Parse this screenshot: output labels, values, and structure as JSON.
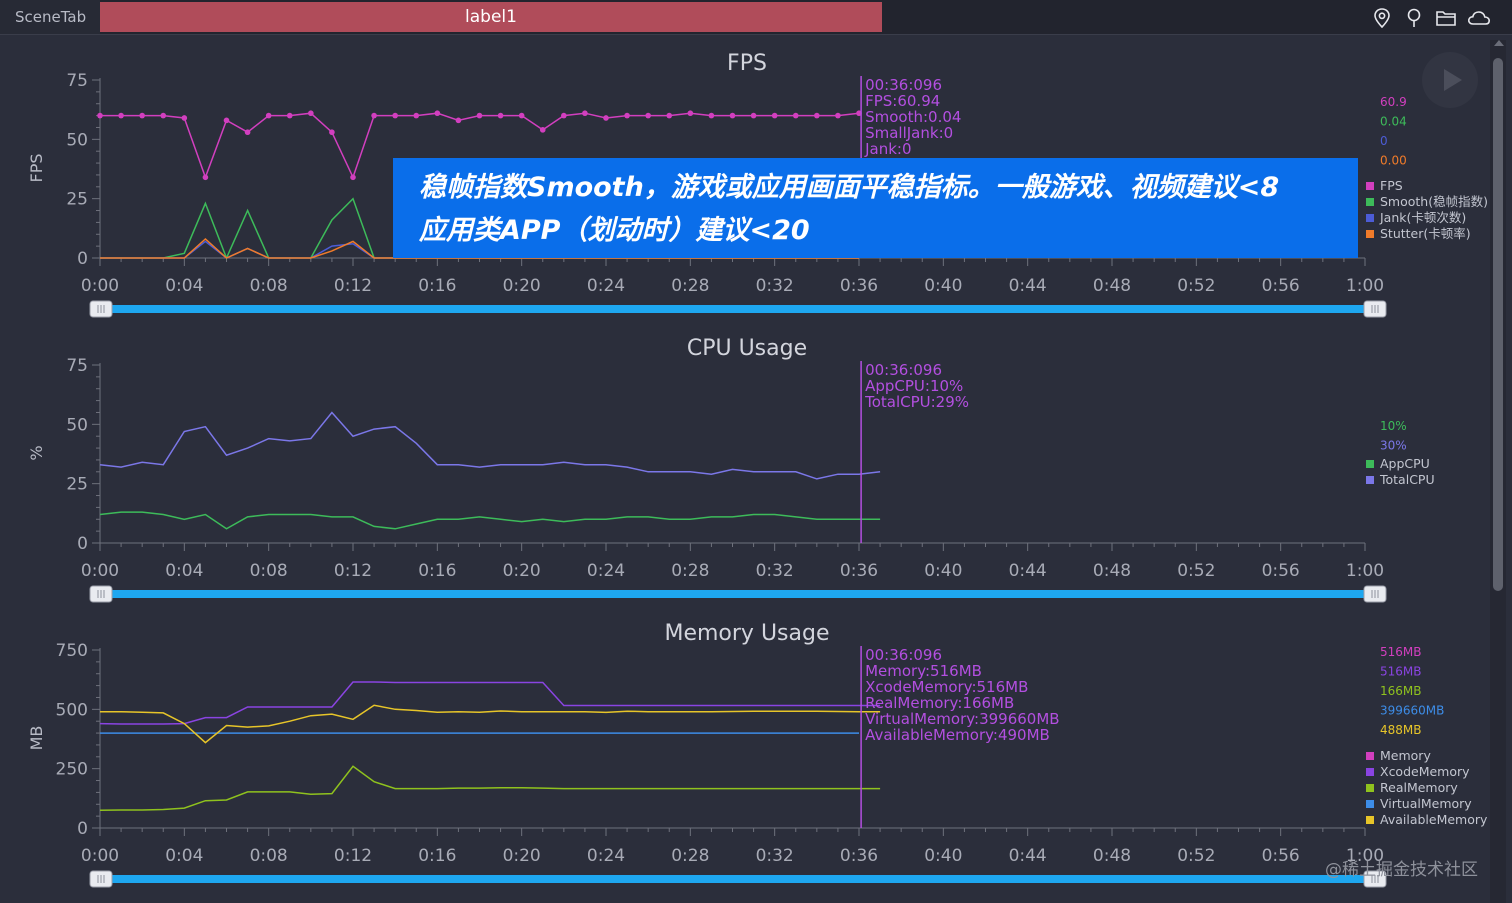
{
  "topbar": {
    "scene_tab": "SceneTab",
    "label_tab": "label1",
    "icons": [
      "location-pin-icon",
      "pin-icon",
      "folder-icon",
      "cloud-icon"
    ]
  },
  "colors": {
    "background": "#2b2e3b",
    "slider": "#1ea7f0",
    "cursor": "#b34fe0",
    "fps": "#d23fbf",
    "smooth": "#3dbb5a",
    "jank": "#4c5cd6",
    "stutter": "#f07b2a",
    "app_cpu": "#3dbb5a",
    "total_cpu": "#7b77e8",
    "memory": "#d23fbf",
    "xcode_memory": "#8a44e2",
    "real_memory": "#8fc21e",
    "virtual_memory": "#3d8de8",
    "available_memory": "#e7c529",
    "banner": "#0a6eea"
  },
  "x_axis": {
    "ticks": [
      "0:00",
      "0:04",
      "0:08",
      "0:12",
      "0:16",
      "0:20",
      "0:24",
      "0:28",
      "0:32",
      "0:36",
      "0:40",
      "0:44",
      "0:48",
      "0:52",
      "0:56",
      "1:00"
    ]
  },
  "banner": {
    "line1": "稳帧指数Smooth，游戏或应用画面平稳指标。一般游戏、视频建议<8",
    "line2": "应用类APP（划动时）建议<20"
  },
  "watermark": "@稀土掘金技术社区",
  "chart_data": [
    {
      "type": "line",
      "title": "FPS",
      "ylabel": "FPS",
      "ylim": [
        0,
        75
      ],
      "y_ticks": [
        "0",
        "25",
        "50",
        "75"
      ],
      "xlim": [
        0,
        60
      ],
      "cursor": {
        "x": 36.1,
        "lines": [
          "00:36:096",
          "FPS:60.94",
          "Smooth:0.04",
          "SmallJank:0",
          "Jank:0"
        ],
        "color": "#b34fe0"
      },
      "side_values": [
        {
          "text": "60.9",
          "color": "#d23fbf"
        },
        {
          "text": "0.04",
          "color": "#3dbb5a"
        },
        {
          "text": "0",
          "color": "#4c5cd6"
        },
        {
          "text": "0.00",
          "color": "#f07b2a"
        }
      ],
      "legend": [
        {
          "name": "FPS",
          "color": "#d23fbf"
        },
        {
          "name": "Smooth(稳帧指数)",
          "color": "#3dbb5a"
        },
        {
          "name": "Jank(卡顿次数)",
          "color": "#4c5cd6"
        },
        {
          "name": "Stutter(卡顿率)",
          "color": "#f07b2a"
        }
      ],
      "series": [
        {
          "name": "FPS",
          "color": "#d23fbf",
          "markers": true,
          "x": [
            0,
            1,
            2,
            3,
            4,
            5,
            6,
            7,
            8,
            9,
            10,
            11,
            12,
            13,
            14,
            15,
            16,
            17,
            18,
            19,
            20,
            21,
            22,
            23,
            24,
            25,
            26,
            27,
            28,
            29,
            30,
            31,
            32,
            33,
            34,
            35,
            36
          ],
          "y": [
            60,
            60,
            60,
            60,
            59,
            34,
            58,
            53,
            60,
            60,
            61,
            53,
            34,
            60,
            60,
            60,
            61,
            58,
            60,
            60,
            60,
            54,
            60,
            61,
            59,
            60,
            60,
            60,
            61,
            60,
            60,
            60,
            60,
            60,
            60,
            60,
            61
          ]
        },
        {
          "name": "Smooth",
          "color": "#3dbb5a",
          "markers": false,
          "x": [
            0,
            1,
            2,
            3,
            4,
            5,
            6,
            7,
            8,
            9,
            10,
            11,
            12,
            13,
            14,
            15,
            16,
            17,
            18,
            19,
            20,
            21,
            22,
            23,
            24,
            25,
            26,
            27,
            28,
            29,
            30,
            31,
            32,
            33,
            34,
            35,
            36
          ],
          "y": [
            0,
            0,
            0,
            0,
            2,
            23,
            0,
            20,
            0,
            0,
            0,
            16,
            25,
            0,
            0,
            0,
            0,
            0,
            0,
            0,
            0,
            0,
            0,
            0,
            0,
            0,
            0,
            0,
            0,
            0,
            0,
            0,
            0,
            0,
            0,
            0,
            0
          ]
        },
        {
          "name": "Jank",
          "color": "#4c5cd6",
          "markers": false,
          "x": [
            0,
            1,
            2,
            3,
            4,
            5,
            6,
            7,
            8,
            9,
            10,
            11,
            12,
            13,
            14,
            15,
            16,
            17,
            18,
            19,
            20,
            21,
            22,
            23,
            24,
            25,
            26,
            27,
            28,
            29,
            30,
            31,
            32,
            33,
            34,
            35,
            36
          ],
          "y": [
            0,
            0,
            0,
            0,
            0,
            7,
            0,
            4,
            0,
            0,
            0,
            5,
            6,
            0,
            0,
            0,
            0,
            0,
            0,
            0,
            0,
            0,
            0,
            0,
            0,
            0,
            0,
            0,
            0,
            0,
            0,
            0,
            0,
            0,
            0,
            0,
            0
          ]
        },
        {
          "name": "Stutter",
          "color": "#f07b2a",
          "markers": false,
          "x": [
            0,
            1,
            2,
            3,
            4,
            5,
            6,
            7,
            8,
            9,
            10,
            11,
            12,
            13,
            14,
            15,
            16,
            17,
            18,
            19,
            20,
            21,
            22,
            23,
            24,
            25,
            26,
            27,
            28,
            29,
            30,
            31,
            32,
            33,
            34,
            35,
            36
          ],
          "y": [
            0,
            0,
            0,
            0,
            0,
            8,
            0,
            4,
            0,
            0,
            0,
            3,
            7,
            0,
            0,
            0,
            0,
            0,
            0,
            0,
            0,
            0,
            0,
            0,
            0,
            0,
            0,
            0,
            0,
            0,
            0,
            0,
            0,
            0,
            0,
            0,
            0
          ]
        }
      ]
    },
    {
      "type": "line",
      "title": "CPU Usage",
      "ylabel": "%",
      "ylim": [
        0,
        75
      ],
      "y_ticks": [
        "0",
        "25",
        "50",
        "75"
      ],
      "xlim": [
        0,
        60
      ],
      "cursor": {
        "x": 36.1,
        "lines": [
          "00:36:096",
          "AppCPU:10%",
          "TotalCPU:29%"
        ],
        "color": "#b34fe0"
      },
      "side_values": [
        {
          "text": "10%",
          "color": "#3dbb5a"
        },
        {
          "text": "30%",
          "color": "#7b77e8"
        }
      ],
      "legend": [
        {
          "name": "AppCPU",
          "color": "#3dbb5a"
        },
        {
          "name": "TotalCPU",
          "color": "#7b77e8"
        }
      ],
      "series": [
        {
          "name": "AppCPU",
          "color": "#3dbb5a",
          "markers": false,
          "x": [
            0,
            1,
            2,
            3,
            4,
            5,
            6,
            7,
            8,
            9,
            10,
            11,
            12,
            13,
            14,
            15,
            16,
            17,
            18,
            19,
            20,
            21,
            22,
            23,
            24,
            25,
            26,
            27,
            28,
            29,
            30,
            31,
            32,
            33,
            34,
            35,
            36,
            37
          ],
          "y": [
            12,
            13,
            13,
            12,
            10,
            12,
            6,
            11,
            12,
            12,
            12,
            11,
            11,
            7,
            6,
            8,
            10,
            10,
            11,
            10,
            9,
            10,
            9,
            10,
            10,
            11,
            11,
            10,
            10,
            11,
            11,
            12,
            12,
            11,
            10,
            10,
            10,
            10
          ]
        },
        {
          "name": "TotalCPU",
          "color": "#7b77e8",
          "markers": false,
          "x": [
            0,
            1,
            2,
            3,
            4,
            5,
            6,
            7,
            8,
            9,
            10,
            11,
            12,
            13,
            14,
            15,
            16,
            17,
            18,
            19,
            20,
            21,
            22,
            23,
            24,
            25,
            26,
            27,
            28,
            29,
            30,
            31,
            32,
            33,
            34,
            35,
            36,
            37
          ],
          "y": [
            33,
            32,
            34,
            33,
            47,
            49,
            37,
            40,
            44,
            43,
            44,
            55,
            45,
            48,
            49,
            42,
            33,
            33,
            32,
            33,
            33,
            33,
            34,
            33,
            33,
            32,
            30,
            30,
            30,
            29,
            31,
            30,
            30,
            30,
            27,
            29,
            29,
            30
          ]
        }
      ]
    },
    {
      "type": "line",
      "title": "Memory Usage",
      "ylabel": "MB",
      "ylim": [
        0,
        750
      ],
      "y_ticks": [
        "0",
        "250",
        "500",
        "750"
      ],
      "xlim": [
        0,
        60
      ],
      "cursor": {
        "x": 36.1,
        "lines": [
          "00:36:096",
          "Memory:516MB",
          "XcodeMemory:516MB",
          "RealMemory:166MB",
          "VirtualMemory:399660MB",
          "AvailableMemory:490MB"
        ],
        "color": "#b34fe0"
      },
      "side_values": [
        {
          "text": "516MB",
          "color": "#d23fbf"
        },
        {
          "text": "516MB",
          "color": "#8a44e2"
        },
        {
          "text": "166MB",
          "color": "#8fc21e"
        },
        {
          "text": "399660MB",
          "color": "#3d8de8"
        },
        {
          "text": "488MB",
          "color": "#e7c529"
        }
      ],
      "legend": [
        {
          "name": "Memory",
          "color": "#d23fbf"
        },
        {
          "name": "XcodeMemory",
          "color": "#8a44e2"
        },
        {
          "name": "RealMemory",
          "color": "#8fc21e"
        },
        {
          "name": "VirtualMemory",
          "color": "#3d8de8"
        },
        {
          "name": "AvailableMemory",
          "color": "#e7c529"
        }
      ],
      "series": [
        {
          "name": "XcodeMemory",
          "color": "#8a44e2",
          "markers": false,
          "x": [
            0,
            1,
            2,
            3,
            4,
            5,
            6,
            7,
            8,
            9,
            10,
            11,
            12,
            13,
            14,
            15,
            16,
            17,
            18,
            19,
            20,
            21,
            22,
            23,
            24,
            25,
            26,
            27,
            28,
            29,
            30,
            31,
            32,
            33,
            34,
            35,
            36,
            37
          ],
          "y": [
            440,
            438,
            438,
            438,
            440,
            465,
            465,
            510,
            510,
            510,
            510,
            510,
            615,
            615,
            613,
            613,
            613,
            613,
            613,
            613,
            613,
            613,
            516,
            516,
            516,
            516,
            516,
            516,
            516,
            516,
            516,
            516,
            516,
            516,
            516,
            516,
            516,
            516
          ]
        },
        {
          "name": "RealMemory",
          "color": "#8fc21e",
          "markers": false,
          "x": [
            0,
            1,
            2,
            3,
            4,
            5,
            6,
            7,
            8,
            9,
            10,
            11,
            12,
            13,
            14,
            15,
            16,
            17,
            18,
            19,
            20,
            21,
            22,
            23,
            24,
            25,
            26,
            27,
            28,
            29,
            30,
            31,
            32,
            33,
            34,
            35,
            36,
            37
          ],
          "y": [
            75,
            76,
            76,
            78,
            84,
            115,
            118,
            152,
            152,
            152,
            142,
            145,
            260,
            195,
            166,
            166,
            166,
            168,
            168,
            170,
            170,
            168,
            166,
            166,
            166,
            166,
            166,
            166,
            166,
            166,
            166,
            166,
            166,
            166,
            166,
            166,
            166,
            166
          ]
        },
        {
          "name": "VirtualMemory",
          "color": "#3d8de8",
          "markers": false,
          "x": [
            0,
            1,
            2,
            3,
            4,
            5,
            6,
            7,
            8,
            9,
            10,
            11,
            12,
            13,
            14,
            15,
            16,
            17,
            18,
            19,
            20,
            21,
            22,
            23,
            24,
            25,
            26,
            27,
            28,
            29,
            30,
            31,
            32,
            33,
            34,
            35,
            36
          ],
          "y": [
            400,
            400,
            400,
            400,
            400,
            400,
            400,
            400,
            400,
            400,
            400,
            400,
            400,
            400,
            400,
            400,
            400,
            400,
            400,
            400,
            400,
            400,
            400,
            400,
            400,
            400,
            400,
            400,
            400,
            400,
            400,
            400,
            400,
            400,
            400,
            400,
            400
          ]
        },
        {
          "name": "AvailableMemory",
          "color": "#e7c529",
          "markers": false,
          "x": [
            0,
            1,
            2,
            3,
            4,
            5,
            6,
            7,
            8,
            9,
            10,
            11,
            12,
            13,
            14,
            15,
            16,
            17,
            18,
            19,
            20,
            21,
            22,
            23,
            24,
            25,
            26,
            27,
            28,
            29,
            30,
            31,
            32,
            33,
            34,
            35,
            36,
            37
          ],
          "y": [
            490,
            490,
            488,
            485,
            440,
            360,
            432,
            425,
            430,
            450,
            473,
            480,
            458,
            517,
            500,
            495,
            488,
            490,
            488,
            493,
            490,
            490,
            490,
            490,
            487,
            492,
            490,
            490,
            490,
            490,
            491,
            492,
            492,
            492,
            492,
            491,
            490,
            490
          ]
        }
      ]
    }
  ]
}
